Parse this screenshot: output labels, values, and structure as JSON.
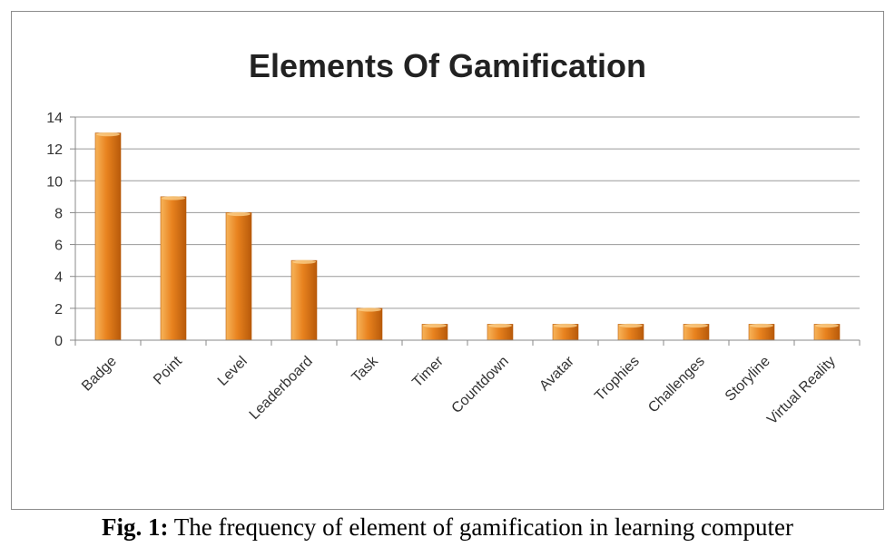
{
  "chart_data": {
    "type": "bar",
    "title": "Elements Of Gamification",
    "categories": [
      "Badge",
      "Point",
      "Level",
      "Leaderboard",
      "Task",
      "Timer",
      "Countdown",
      "Avatar",
      "Trophies",
      "Challenges",
      "Storyline",
      "Virtual Reality"
    ],
    "values": [
      13,
      9,
      8,
      5,
      2,
      1,
      1,
      1,
      1,
      1,
      1,
      1
    ],
    "yticks": [
      0,
      2,
      4,
      6,
      8,
      10,
      12,
      14
    ],
    "ylim": [
      0,
      14
    ],
    "grid": true,
    "legend": "none",
    "colors": {
      "bar_light": "#f7b45a",
      "bar_main": "#e8821e",
      "bar_dark": "#b85a0a",
      "grid": "#9a9a9a"
    }
  },
  "caption": {
    "label": "Fig. 1:",
    "text": " The frequency of element of gamification in learning computer"
  }
}
